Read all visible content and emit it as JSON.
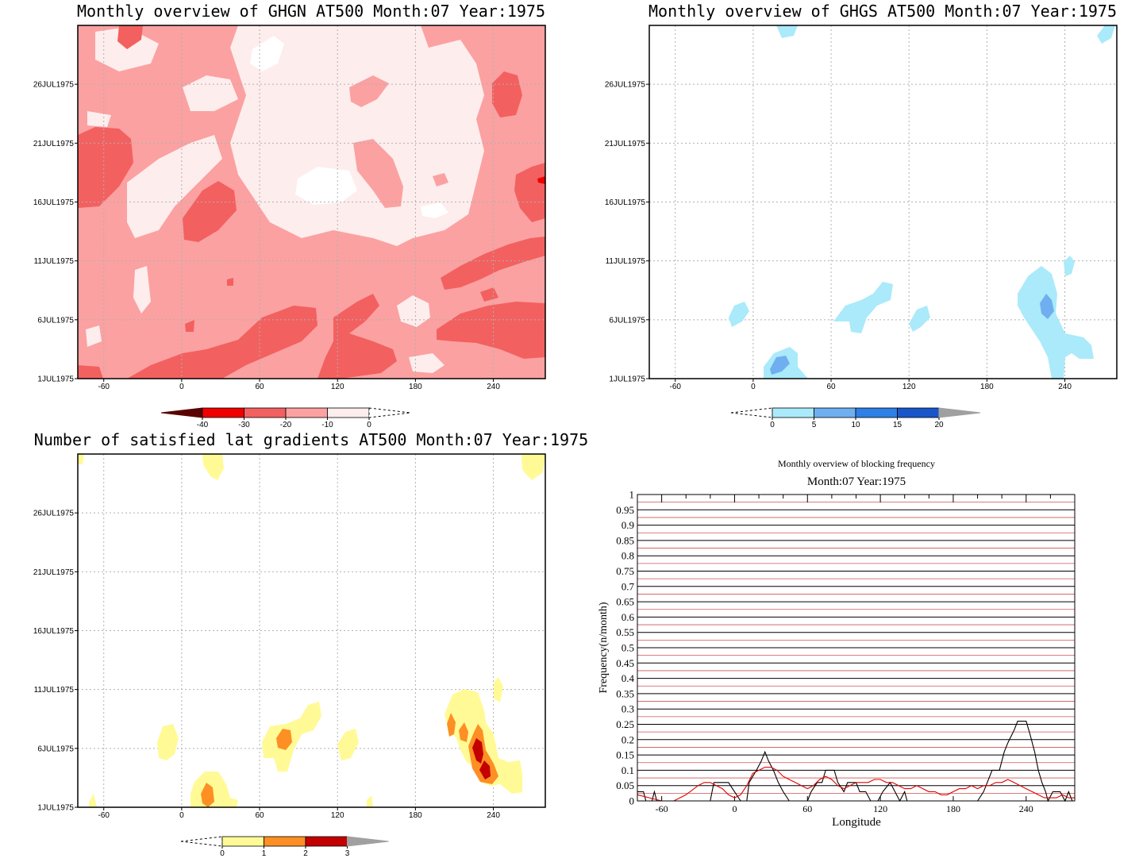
{
  "chart_data": [
    {
      "id": "ghgn",
      "type": "heatmap",
      "title": "Monthly overview of GHGN AT500 Month:07 Year:1975",
      "x_ticks": [
        -60,
        0,
        60,
        120,
        180,
        240
      ],
      "y_ticks": [
        "1JUL1975",
        "6JUL1975",
        "11JUL1975",
        "16JUL1975",
        "21JUL1975",
        "26JUL1975"
      ],
      "xlim": [
        -80,
        280
      ],
      "ylim": [
        1,
        31
      ],
      "grid": true,
      "colorbar": {
        "labels": [
          "-40",
          "-30",
          "-20",
          "-10",
          "0"
        ],
        "colors": [
          "#5a0000",
          "#f00000",
          "#f36060",
          "#fba1a1",
          "#feeded",
          "#ffffff"
        ],
        "extend": "both"
      }
    },
    {
      "id": "ghgs",
      "type": "heatmap",
      "title": "Monthly overview of GHGS AT500 Month:07 Year:1975",
      "x_ticks": [
        -60,
        0,
        60,
        120,
        180,
        240
      ],
      "y_ticks": [
        "1JUL1975",
        "6JUL1975",
        "11JUL1975",
        "16JUL1975",
        "21JUL1975",
        "26JUL1975"
      ],
      "xlim": [
        -80,
        280
      ],
      "ylim": [
        1,
        31
      ],
      "grid": true,
      "colorbar": {
        "labels": [
          "0",
          "5",
          "10",
          "15",
          "20"
        ],
        "colors": [
          "#ffffff",
          "#aaeafa",
          "#6faff0",
          "#2e7fe6",
          "#1856c9",
          "#a0a0a0"
        ],
        "extend": "both"
      }
    },
    {
      "id": "gradients",
      "type": "heatmap",
      "title": "Number of satisfied lat gradients AT500 Month:07 Year:1975",
      "x_ticks": [
        -60,
        0,
        60,
        120,
        180,
        240
      ],
      "y_ticks": [
        "1JUL1975",
        "6JUL1975",
        "11JUL1975",
        "16JUL1975",
        "21JUL1975",
        "26JUL1975"
      ],
      "xlim": [
        -80,
        280
      ],
      "ylim": [
        1,
        31
      ],
      "grid": true,
      "colorbar": {
        "labels": [
          "0",
          "1",
          "2",
          "3"
        ],
        "colors": [
          "#ffffff",
          "#fffa96",
          "#fd8f24",
          "#c30000",
          "#a0a0a0"
        ],
        "extend": "both"
      }
    },
    {
      "id": "blocking",
      "type": "line",
      "title": "Monthly overview of blocking frequency",
      "subtitle": "Month:07 Year:1975",
      "xlabel": "Longitude",
      "ylabel": "Frequency(n/month)",
      "xlim": [
        -80,
        280
      ],
      "ylim": [
        0,
        1
      ],
      "x_ticks": [
        -60,
        0,
        60,
        120,
        180,
        240
      ],
      "y_ticks": [
        "0",
        "0.05",
        "0.1",
        "0.15",
        "0.2",
        "0.25",
        "0.3",
        "0.35",
        "0.4",
        "0.45",
        "0.5",
        "0.55",
        "0.6",
        "0.65",
        "0.7",
        "0.75",
        "0.8",
        "0.85",
        "0.9",
        "0.95",
        "1"
      ],
      "series": [
        {
          "color": "#000000",
          "points": [
            [
              -80,
              0.03
            ],
            [
              -75,
              0.03
            ],
            [
              -73,
              0
            ],
            [
              -68,
              0.0
            ],
            [
              -66,
              0.03
            ],
            [
              -64,
              0
            ],
            [
              -30,
              0
            ],
            [
              -20,
              0
            ],
            [
              -17,
              0.06
            ],
            [
              -5,
              0.06
            ],
            [
              0,
              0.03
            ],
            [
              5,
              0
            ],
            [
              10,
              0
            ],
            [
              12,
              0.06
            ],
            [
              18,
              0.1
            ],
            [
              22,
              0.13
            ],
            [
              25,
              0.16
            ],
            [
              28,
              0.13
            ],
            [
              32,
              0.1
            ],
            [
              36,
              0.06
            ],
            [
              40,
              0.03
            ],
            [
              45,
              0
            ],
            [
              60,
              0
            ],
            [
              63,
              0.03
            ],
            [
              68,
              0.06
            ],
            [
              72,
              0.06
            ],
            [
              75,
              0.1
            ],
            [
              82,
              0.1
            ],
            [
              85,
              0.06
            ],
            [
              90,
              0.03
            ],
            [
              93,
              0.06
            ],
            [
              100,
              0.06
            ],
            [
              103,
              0.03
            ],
            [
              108,
              0.03
            ],
            [
              112,
              0
            ],
            [
              118,
              0
            ],
            [
              122,
              0.03
            ],
            [
              128,
              0.06
            ],
            [
              132,
              0.03
            ],
            [
              136,
              0
            ],
            [
              140,
              0.03
            ],
            [
              142,
              0
            ],
            [
              200,
              0
            ],
            [
              205,
              0.03
            ],
            [
              212,
              0.1
            ],
            [
              218,
              0.1
            ],
            [
              222,
              0.16
            ],
            [
              225,
              0.19
            ],
            [
              230,
              0.23
            ],
            [
              233,
              0.26
            ],
            [
              240,
              0.26
            ],
            [
              243,
              0.22
            ],
            [
              247,
              0.16
            ],
            [
              250,
              0.1
            ],
            [
              253,
              0.06
            ],
            [
              256,
              0.03
            ],
            [
              258,
              0.0
            ],
            [
              262,
              0.03
            ],
            [
              268,
              0.03
            ],
            [
              272,
              0.0
            ],
            [
              275,
              0.03
            ],
            [
              278,
              0.0
            ]
          ]
        },
        {
          "color": "#e00000",
          "points": [
            [
              -80,
              0.02
            ],
            [
              -70,
              0.01
            ],
            [
              -60,
              0.0
            ],
            [
              -50,
              0.0
            ],
            [
              -40,
              0.02
            ],
            [
              -30,
              0.05
            ],
            [
              -25,
              0.06
            ],
            [
              -20,
              0.06
            ],
            [
              -15,
              0.05
            ],
            [
              -10,
              0.04
            ],
            [
              -5,
              0.02
            ],
            [
              0,
              0.01
            ],
            [
              5,
              0.02
            ],
            [
              10,
              0.05
            ],
            [
              15,
              0.09
            ],
            [
              20,
              0.1
            ],
            [
              25,
              0.11
            ],
            [
              30,
              0.11
            ],
            [
              35,
              0.1
            ],
            [
              40,
              0.08
            ],
            [
              45,
              0.07
            ],
            [
              50,
              0.06
            ],
            [
              55,
              0.05
            ],
            [
              60,
              0.04
            ],
            [
              65,
              0.05
            ],
            [
              70,
              0.07
            ],
            [
              75,
              0.08
            ],
            [
              80,
              0.07
            ],
            [
              85,
              0.05
            ],
            [
              90,
              0.04
            ],
            [
              95,
              0.05
            ],
            [
              100,
              0.06
            ],
            [
              105,
              0.06
            ],
            [
              110,
              0.06
            ],
            [
              115,
              0.07
            ],
            [
              120,
              0.07
            ],
            [
              125,
              0.06
            ],
            [
              130,
              0.06
            ],
            [
              135,
              0.05
            ],
            [
              140,
              0.04
            ],
            [
              145,
              0.04
            ],
            [
              150,
              0.05
            ],
            [
              155,
              0.04
            ],
            [
              160,
              0.03
            ],
            [
              165,
              0.03
            ],
            [
              170,
              0.02
            ],
            [
              175,
              0.02
            ],
            [
              180,
              0.03
            ],
            [
              185,
              0.04
            ],
            [
              190,
              0.04
            ],
            [
              195,
              0.05
            ],
            [
              200,
              0.04
            ],
            [
              205,
              0.05
            ],
            [
              210,
              0.05
            ],
            [
              215,
              0.06
            ],
            [
              220,
              0.06
            ],
            [
              225,
              0.07
            ],
            [
              230,
              0.06
            ],
            [
              235,
              0.05
            ],
            [
              240,
              0.04
            ],
            [
              245,
              0.03
            ],
            [
              250,
              0.02
            ],
            [
              255,
              0.01
            ],
            [
              260,
              0.01
            ],
            [
              265,
              0.01
            ],
            [
              270,
              0.02
            ],
            [
              275,
              0.01
            ],
            [
              280,
              0.01
            ]
          ]
        }
      ]
    }
  ]
}
